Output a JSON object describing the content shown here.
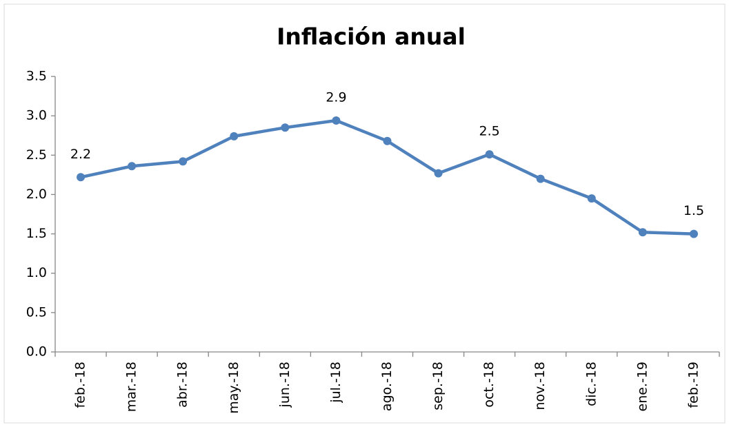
{
  "chart_data": {
    "type": "line",
    "title": "Inflación anual",
    "categories": [
      "feb.-18",
      "mar.-18",
      "abr.-18",
      "may.-18",
      "jun.-18",
      "jul.-18",
      "ago.-18",
      "sep.-18",
      "oct.-18",
      "nov.-18",
      "dic.-18",
      "ene.-19",
      "feb.-19"
    ],
    "series": [
      {
        "name": "Inflación anual",
        "color": "#4f81bd",
        "values": [
          2.22,
          2.36,
          2.42,
          2.74,
          2.85,
          2.94,
          2.68,
          2.27,
          2.51,
          2.2,
          1.95,
          1.52,
          1.5
        ],
        "value_labels": [
          "2.2",
          null,
          null,
          null,
          null,
          "2.9",
          null,
          null,
          "2.5",
          null,
          null,
          null,
          "1.5"
        ]
      }
    ],
    "ylim": [
      0,
      3.5
    ],
    "yticks": [
      {
        "value": 0,
        "label": "0.0"
      },
      0.5,
      {
        "value": 1,
        "label": "1.0"
      },
      1.5,
      {
        "value": 2,
        "label": "2.0"
      },
      2.5,
      {
        "value": 3,
        "label": "3.0"
      },
      3.5
    ],
    "grid": false
  }
}
